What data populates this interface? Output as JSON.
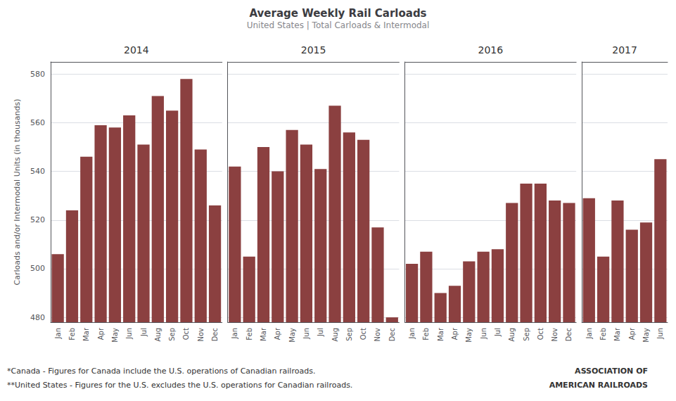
{
  "chart_data": {
    "type": "bar",
    "title": "Average Weekly Rail Carloads",
    "subtitle": "United States | Total Carloads & Intermodal",
    "ylabel": "Carloads and/or Intermodal Units (in thousands)",
    "color": "#8B4040",
    "ylim": [
      478,
      585
    ],
    "yticks": [
      480,
      500,
      520,
      540,
      560,
      580
    ],
    "grid": true,
    "groups": [
      {
        "label": "2014",
        "categories": [
          "Jan",
          "Feb",
          "Mar",
          "Apr",
          "May",
          "Jun",
          "Jul",
          "Aug",
          "Sep",
          "Oct",
          "Nov",
          "Dec"
        ],
        "values": [
          506,
          524,
          546,
          559,
          558,
          563,
          551,
          571,
          565,
          578,
          549,
          526
        ]
      },
      {
        "label": "2015",
        "categories": [
          "Jan",
          "Feb",
          "Mar",
          "Apr",
          "May",
          "Jun",
          "Jul",
          "Aug",
          "Sep",
          "Oct",
          "Nov",
          "Dec"
        ],
        "values": [
          542,
          505,
          550,
          540,
          557,
          551,
          541,
          567,
          556,
          553,
          517,
          480
        ]
      },
      {
        "label": "2016",
        "categories": [
          "Jan",
          "Feb",
          "Mar",
          "Apr",
          "May",
          "Jun",
          "Jul",
          "Aug",
          "Sep",
          "Oct",
          "Nov",
          "Dec"
        ],
        "values": [
          502,
          507,
          490,
          493,
          503,
          507,
          508,
          527,
          535,
          535,
          528,
          527
        ]
      },
      {
        "label": "2017",
        "categories": [
          "Jan",
          "Feb",
          "Mar",
          "Apr",
          "May",
          "Jun"
        ],
        "values": [
          529,
          505,
          528,
          516,
          519,
          545
        ]
      }
    ],
    "annotations": [
      "*Canada - Figures for Canada include the U.S. operations of Canadian railroads.",
      "**United States - Figures for the U.S. excludes the U.S. operations for Canadian railroads.",
      "ASSOCIATION OF",
      "AMERICAN RAILROADS"
    ]
  }
}
